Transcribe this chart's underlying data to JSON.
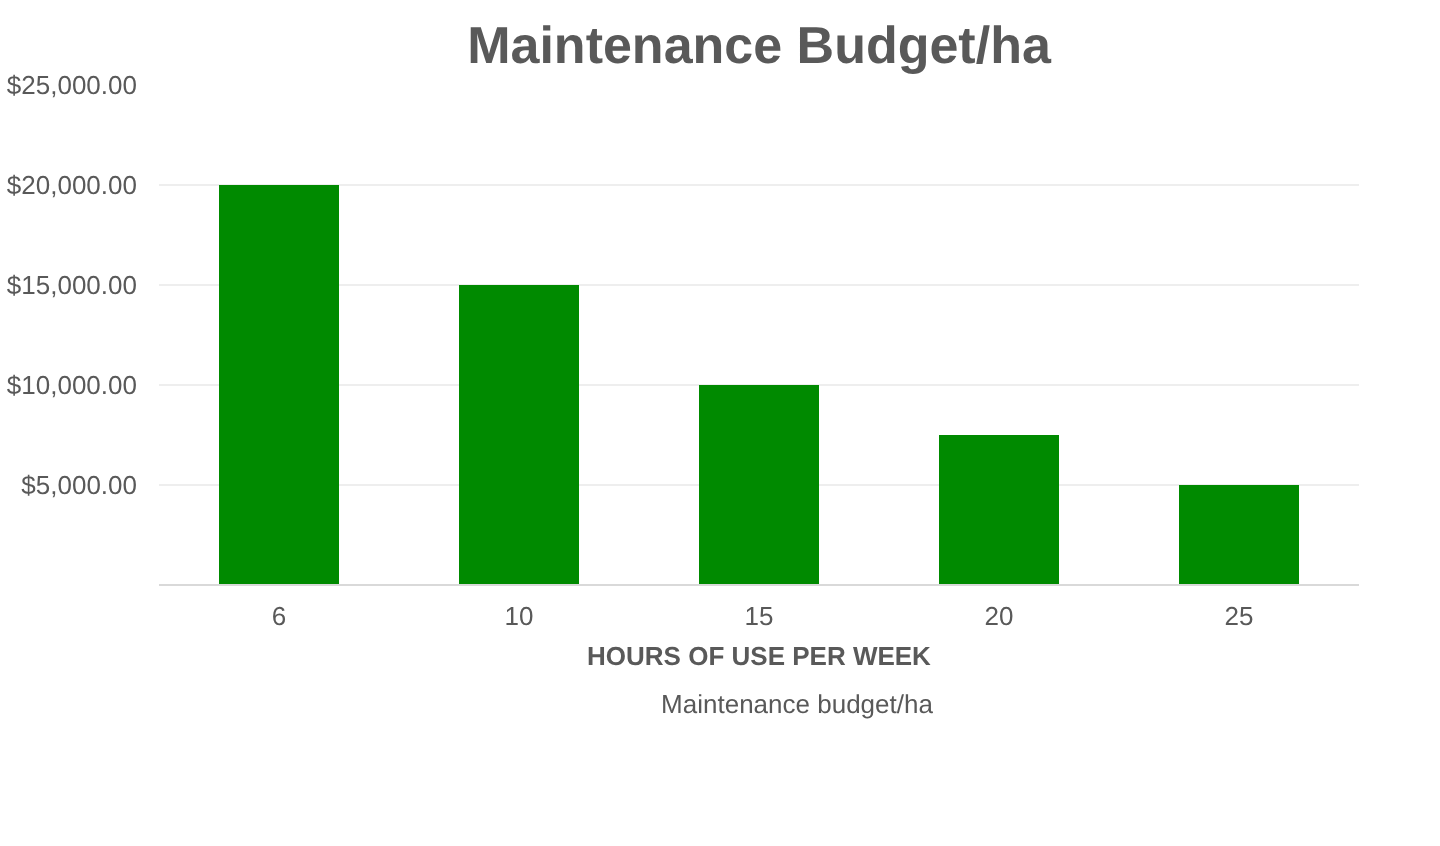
{
  "chart_data": {
    "type": "bar",
    "title": "Maintenance Budget/ha",
    "xlabel": "HOURS OF USE PER WEEK",
    "categories": [
      "6",
      "10",
      "15",
      "20",
      "25"
    ],
    "series": [
      {
        "name": "Maintenance budget/ha",
        "color": "#008a00",
        "values": [
          20000,
          15000,
          10000,
          7500,
          5000
        ]
      }
    ],
    "ylim": [
      0,
      25000
    ],
    "yticks": [
      {
        "value": 5000,
        "label": "$5,000.00"
      },
      {
        "value": 10000,
        "label": "$10,000.00"
      },
      {
        "value": 15000,
        "label": "$15,000.00"
      },
      {
        "value": 20000,
        "label": "$20,000.00"
      },
      {
        "value": 25000,
        "label": "$25,000.00"
      }
    ],
    "grid": "y",
    "legend": "bottom"
  }
}
